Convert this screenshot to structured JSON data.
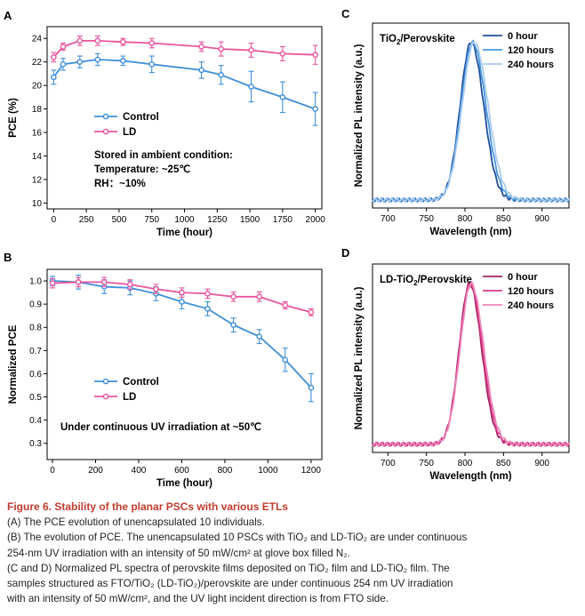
{
  "chart_data": [
    {
      "panel": "A",
      "type": "line",
      "xlabel": "Time (hour)",
      "ylabel": "PCE (%)",
      "xlim": [
        -50,
        2050
      ],
      "ylim": [
        9.5,
        25
      ],
      "xticks": [
        0,
        250,
        500,
        750,
        1000,
        1250,
        1500,
        1750,
        2000
      ],
      "yticks": [
        10,
        12,
        14,
        16,
        18,
        20,
        22,
        24
      ],
      "x": [
        0,
        72,
        200,
        336,
        530,
        750,
        1130,
        1280,
        1510,
        1750,
        2000
      ],
      "series": [
        {
          "name": "Control",
          "color": "#3f8fd9",
          "values": [
            20.7,
            21.8,
            22.0,
            22.2,
            22.1,
            21.8,
            21.3,
            20.9,
            19.9,
            19.0,
            18.0
          ],
          "errors": [
            0.6,
            0.5,
            0.5,
            0.5,
            0.4,
            0.7,
            0.7,
            0.8,
            1.3,
            1.3,
            1.4
          ]
        },
        {
          "name": "LD",
          "color": "#e8559e",
          "values": [
            22.4,
            23.3,
            23.8,
            23.8,
            23.7,
            23.6,
            23.3,
            23.1,
            23.0,
            22.7,
            22.6
          ],
          "errors": [
            0.4,
            0.3,
            0.4,
            0.4,
            0.3,
            0.4,
            0.4,
            0.6,
            0.6,
            0.6,
            0.8
          ]
        }
      ],
      "annotations": [
        "Stored in  ambient condition:",
        "Temperature: ~25℃",
        "RH：~10%"
      ]
    },
    {
      "panel": "B",
      "type": "line",
      "xlabel": "Time (hour)",
      "ylabel": "Normalized PCE",
      "xlim": [
        -25,
        1250
      ],
      "ylim": [
        0.23,
        1.05
      ],
      "xticks": [
        0,
        200,
        400,
        600,
        800,
        1000,
        1200
      ],
      "yticks": [
        0.3,
        0.4,
        0.5,
        0.6,
        0.7,
        0.8,
        0.9,
        1.0
      ],
      "x": [
        0,
        120,
        240,
        360,
        480,
        600,
        720,
        840,
        960,
        1080,
        1200
      ],
      "series": [
        {
          "name": "Control",
          "color": "#3f8fd9",
          "values": [
            1.0,
            0.995,
            0.975,
            0.97,
            0.945,
            0.91,
            0.88,
            0.81,
            0.76,
            0.66,
            0.54
          ],
          "errors": [
            0.02,
            0.03,
            0.03,
            0.03,
            0.03,
            0.03,
            0.03,
            0.03,
            0.03,
            0.05,
            0.06
          ]
        },
        {
          "name": "LD",
          "color": "#e8559e",
          "values": [
            0.99,
            0.995,
            0.995,
            0.985,
            0.965,
            0.95,
            0.945,
            0.932,
            0.932,
            0.895,
            0.865
          ],
          "errors": [
            0.02,
            0.02,
            0.02,
            0.02,
            0.02,
            0.02,
            0.02,
            0.02,
            0.02,
            0.015,
            0.015
          ]
        }
      ],
      "annotations": [
        "Under continuous UV irradiation at ~50℃"
      ]
    },
    {
      "panel": "C",
      "type": "line",
      "xlabel": "Wavelength (nm)",
      "ylabel": "Normalized PL intensity (a.u.)",
      "xlim": [
        680,
        935
      ],
      "ylim": [
        -0.03,
        1.12
      ],
      "xticks": [
        700,
        750,
        800,
        850,
        900
      ],
      "title_main": "TiO",
      "title_sub": "2",
      "title_end": "/Perovskite",
      "series": [
        {
          "name": "0 hour",
          "color": "#1f4e9a",
          "peak": 808,
          "width": 20
        },
        {
          "name": "120 hours",
          "color": "#4a97de",
          "peak": 810,
          "width": 21
        },
        {
          "name": "240 hours",
          "color": "#a9cdf2",
          "peak": 812,
          "width": 22
        }
      ]
    },
    {
      "panel": "D",
      "type": "line",
      "xlabel": "Wavelength (nm)",
      "ylabel": "Normalized PL intensity (a.u.)",
      "xlim": [
        680,
        935
      ],
      "ylim": [
        -0.03,
        1.12
      ],
      "xticks": [
        700,
        750,
        800,
        850,
        900
      ],
      "title_main": "LD-TiO",
      "title_sub": "2",
      "title_end": "/Perovskite",
      "series": [
        {
          "name": "0 hour",
          "color": "#a3245e",
          "peak": 806,
          "width": 19
        },
        {
          "name": "120 hours",
          "color": "#d93a8b",
          "peak": 807,
          "width": 19.5
        },
        {
          "name": "240 hours",
          "color": "#ef86bb",
          "peak": 808,
          "width": 20
        }
      ]
    }
  ],
  "panel_letters": [
    "A",
    "B",
    "C",
    "D"
  ],
  "caption": {
    "title": "Figure 6.  Stability of the planar PSCs with various ETLs",
    "lines": [
      "(A) The PCE evolution of unencapsulated 10 individuals.",
      "(B) The evolution of PCE. The unencapsulated 10 PSCs with TiO₂ and LD-TiO₂ are under continuous",
      "254-nm UV irradiation with an intensity of 50 mW/cm² at glove box filled N₂.",
      "(C and D) Normalized PL spectra of perovskite films deposited on TiO₂ film and LD-TiO₂ film. The",
      "samples structured as FTO/TiO₂ (LD-TiO₂)/perovskite are under continuous 254 nm UV irradiation",
      "with an intensity of 50 mW/cm², and the UV light incident direction is from FTO side."
    ]
  }
}
